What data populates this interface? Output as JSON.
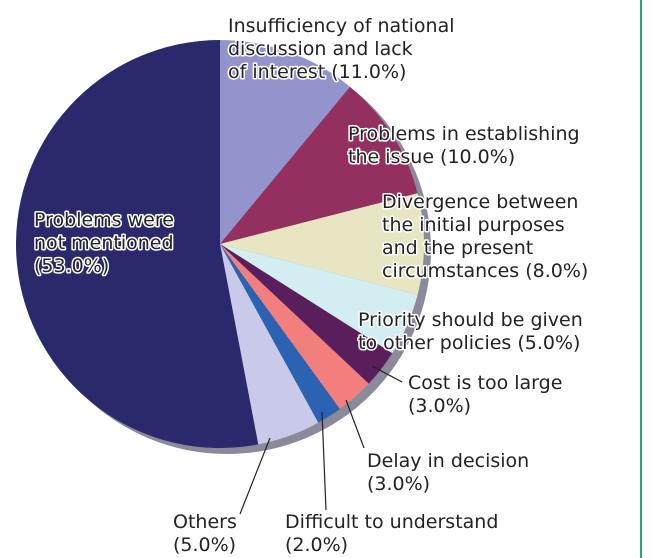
{
  "chart_data": {
    "type": "pie",
    "categories": [
      "Insufficiency of national discussion and lack of interest",
      "Problems in establishing the issue",
      "Divergence between the initial purposes and the present circumstances",
      "Priority should be given to other policies",
      "Cost is too large",
      "Delay in decision",
      "Difficult to understand",
      "Others",
      "Problems were not mentioned"
    ],
    "values": [
      11,
      10,
      8,
      5,
      3,
      3,
      2,
      5,
      53
    ],
    "value_labels": [
      "(11.0%)",
      "(10.0%)",
      "(8.0%)",
      "(5.0%)",
      "(3.0%)",
      "(3.0%)",
      "(2.0%)",
      "(5.0%)",
      "(53.0%)"
    ],
    "colors": [
      "#9494cc",
      "#93305f",
      "#e7e5c2",
      "#d2eef2",
      "#5a1e5c",
      "#f37e7e",
      "#2b62b2",
      "#c9c9e9",
      "#29296c"
    ]
  }
}
